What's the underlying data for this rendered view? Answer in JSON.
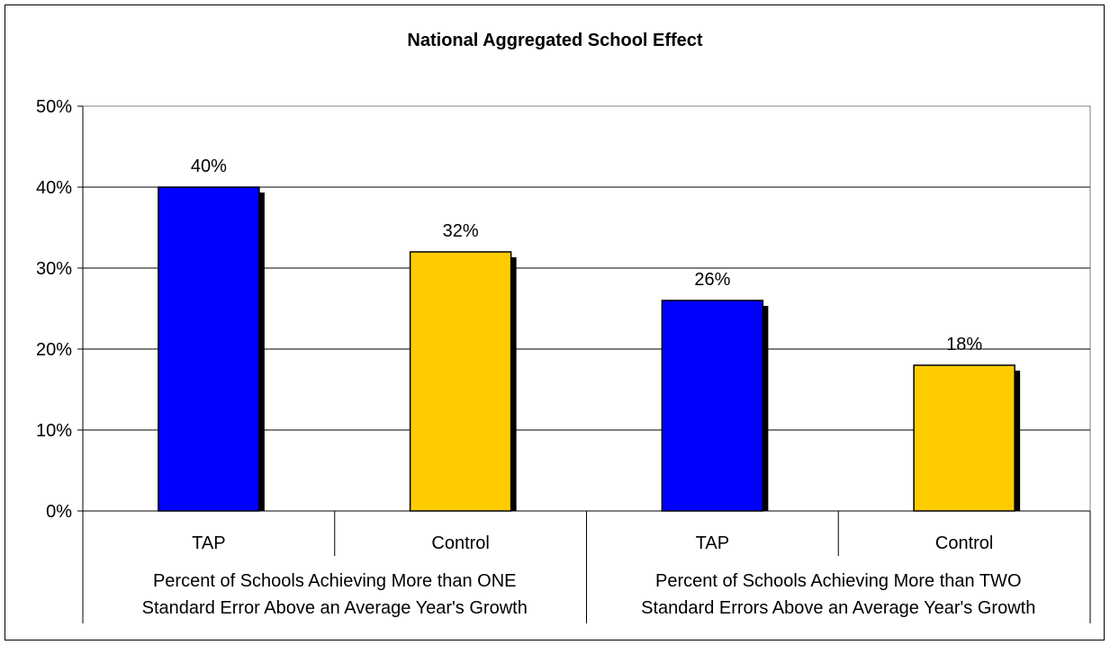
{
  "chart_data": {
    "type": "bar",
    "title": "National Aggregated School Effect",
    "categories": [
      "TAP",
      "Control",
      "TAP",
      "Control"
    ],
    "groups": [
      {
        "label_lines": [
          "Percent of Schools Achieving More than ONE",
          "Standard Error Above an Average Year's Growth"
        ]
      },
      {
        "label_lines": [
          "Percent of Schools Achieving More than TWO",
          "Standard Errors Above an Average Year's Growth"
        ]
      }
    ],
    "values": [
      40,
      32,
      26,
      18
    ],
    "data_labels": [
      "40%",
      "32%",
      "26%",
      "18%"
    ],
    "bar_colors": [
      "#0000ff",
      "#ffcc00",
      "#0000ff",
      "#ffcc00"
    ],
    "ylim": [
      0,
      50
    ],
    "yticks": [
      "0%",
      "10%",
      "20%",
      "30%",
      "40%",
      "50%"
    ],
    "ytick_values": [
      0,
      10,
      20,
      30,
      40,
      50
    ],
    "grid": true,
    "legend": "none"
  }
}
